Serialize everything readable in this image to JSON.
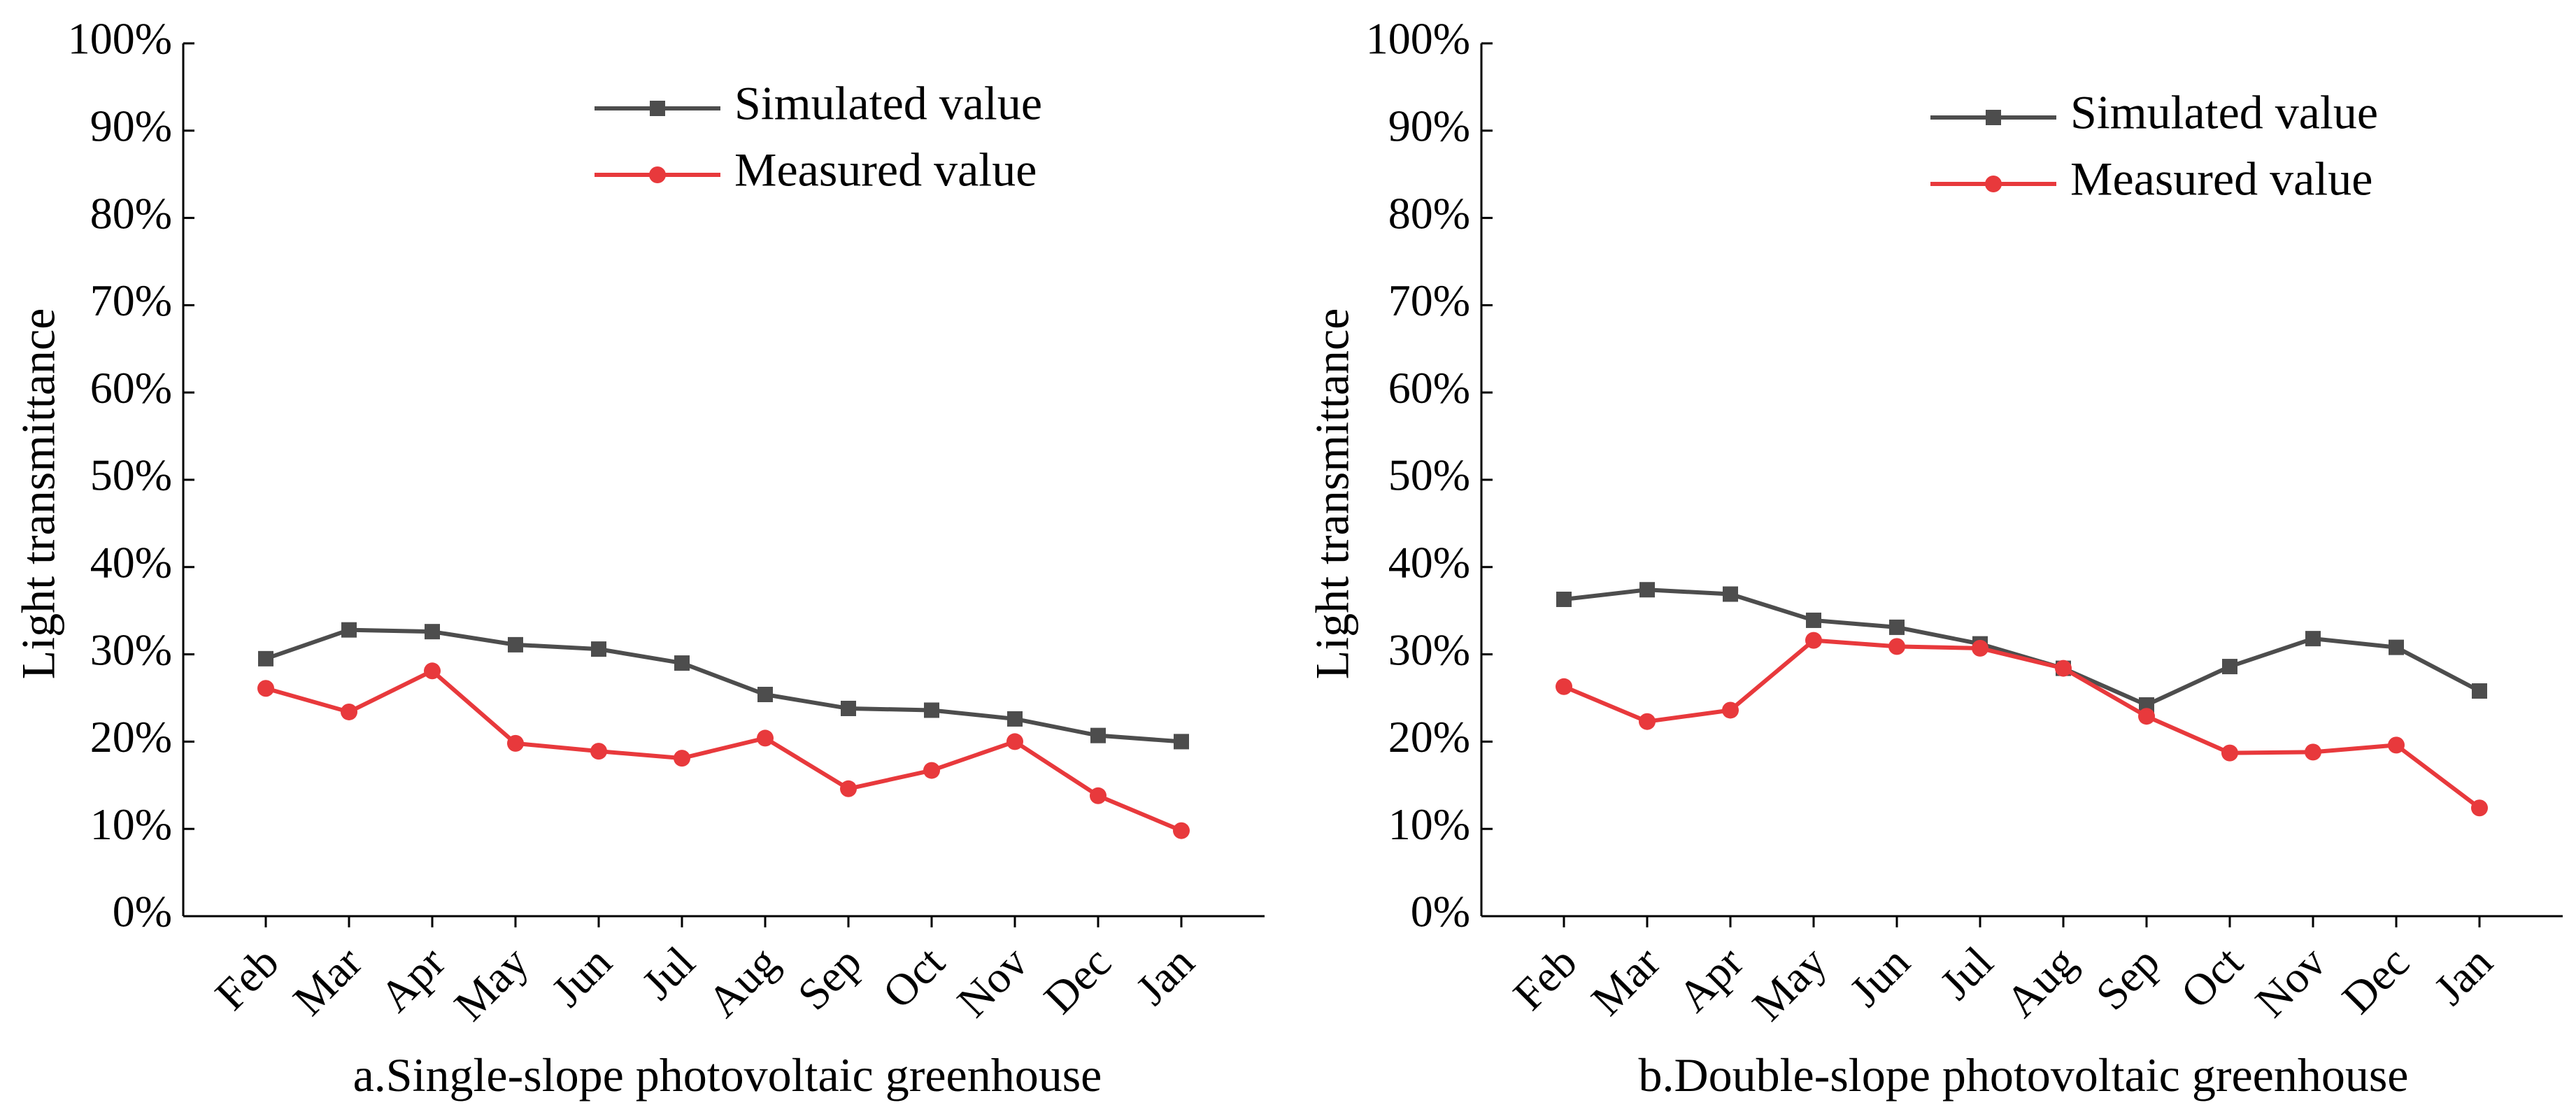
{
  "chart_data": [
    {
      "type": "line",
      "title": "a.Single-slope photovoltaic greenhouse",
      "xlabel": "a.Single-slope photovoltaic greenhouse",
      "ylabel": "Light transmittance",
      "categories": [
        "Feb",
        "Mar",
        "Apr",
        "May",
        "Jun",
        "Jul",
        "Aug",
        "Sep",
        "Oct",
        "Nov",
        "Dec",
        "Jan"
      ],
      "ylim": [
        0,
        100
      ],
      "yticks": [
        "0%",
        "10%",
        "20%",
        "30%",
        "40%",
        "50%",
        "60%",
        "70%",
        "80%",
        "90%",
        "100%"
      ],
      "grid": false,
      "legend_position": "top-center",
      "series": [
        {
          "name": "Simulated value",
          "color": "#4d4d4d",
          "marker": "square",
          "values": [
            29.5,
            32.8,
            32.6,
            31.1,
            30.6,
            29.0,
            25.4,
            23.8,
            23.6,
            22.6,
            20.7,
            20.0
          ]
        },
        {
          "name": "Measured value",
          "color": "#e8393c",
          "marker": "circle",
          "values": [
            26.1,
            23.4,
            28.1,
            19.8,
            18.9,
            18.1,
            20.4,
            14.6,
            16.7,
            20.0,
            13.8,
            9.8
          ]
        }
      ]
    },
    {
      "type": "line",
      "title": "b.Double-slope photovoltaic greenhouse",
      "xlabel": "b.Double-slope photovoltaic greenhouse",
      "ylabel": "Light transmittance",
      "categories": [
        "Feb",
        "Mar",
        "Apr",
        "May",
        "Jun",
        "Jul",
        "Aug",
        "Sep",
        "Oct",
        "Nov",
        "Dec",
        "Jan"
      ],
      "ylim": [
        0,
        100
      ],
      "yticks": [
        "0%",
        "10%",
        "20%",
        "30%",
        "40%",
        "50%",
        "60%",
        "70%",
        "80%",
        "90%",
        "100%"
      ],
      "grid": false,
      "legend_position": "top-right",
      "series": [
        {
          "name": "Simulated value",
          "color": "#4d4d4d",
          "marker": "square",
          "values": [
            36.3,
            37.4,
            36.9,
            33.9,
            33.1,
            31.2,
            28.4,
            24.2,
            28.6,
            31.8,
            30.8,
            25.8
          ]
        },
        {
          "name": "Measured value",
          "color": "#e8393c",
          "marker": "circle",
          "values": [
            26.3,
            22.3,
            23.6,
            31.6,
            30.9,
            30.7,
            28.4,
            22.9,
            18.7,
            18.8,
            19.6,
            12.4
          ]
        }
      ]
    }
  ]
}
